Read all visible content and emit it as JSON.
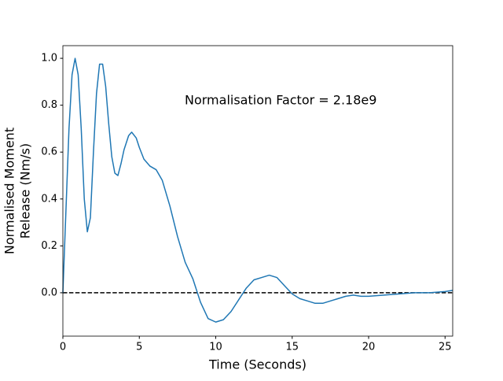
{
  "chart_data": {
    "type": "line",
    "xlabel": "Time (Seconds)",
    "ylabel": [
      "Normalised Moment",
      "Release (Nm/s)"
    ],
    "annotation": "Normalisation Factor = 2.18e9",
    "x": [
      0,
      0.2,
      0.4,
      0.6,
      0.8,
      1.0,
      1.2,
      1.4,
      1.6,
      1.8,
      2.0,
      2.2,
      2.4,
      2.6,
      2.8,
      3.0,
      3.2,
      3.4,
      3.6,
      3.8,
      4.0,
      4.3,
      4.5,
      4.8,
      5.0,
      5.3,
      5.7,
      6.1,
      6.5,
      7.0,
      7.5,
      8.0,
      8.5,
      9.0,
      9.5,
      10.0,
      10.5,
      11.0,
      11.5,
      12.0,
      12.5,
      13.0,
      13.5,
      14.0,
      14.5,
      15.0,
      15.5,
      16.0,
      16.5,
      17.0,
      17.5,
      18.0,
      18.5,
      19.0,
      19.5,
      20.0,
      21.0,
      22.0,
      23.0,
      24.0,
      25.0,
      25.5
    ],
    "series": [
      {
        "color": "#1f77b4",
        "values": [
          0.0,
          0.35,
          0.7,
          0.93,
          1.0,
          0.93,
          0.7,
          0.4,
          0.26,
          0.32,
          0.6,
          0.85,
          0.975,
          0.975,
          0.88,
          0.72,
          0.58,
          0.51,
          0.5,
          0.55,
          0.61,
          0.67,
          0.685,
          0.66,
          0.62,
          0.57,
          0.54,
          0.525,
          0.48,
          0.37,
          0.24,
          0.13,
          0.06,
          -0.04,
          -0.11,
          -0.125,
          -0.115,
          -0.08,
          -0.03,
          0.02,
          0.055,
          0.065,
          0.075,
          0.065,
          0.03,
          -0.005,
          -0.025,
          -0.035,
          -0.045,
          -0.045,
          -0.035,
          -0.025,
          -0.015,
          -0.01,
          -0.015,
          -0.015,
          -0.01,
          -0.005,
          0.0,
          0.0,
          0.005,
          0.01
        ]
      }
    ],
    "reference_line": {
      "value": 0,
      "color": "#000000",
      "style": "dashed"
    },
    "xlim": [
      0,
      25.5
    ],
    "xticks": [
      0,
      5,
      10,
      15,
      20,
      25
    ],
    "ylim": [
      -0.185,
      1.054
    ],
    "yticks": [
      {
        "value": 0,
        "label": "0.0"
      },
      0.2,
      0.4,
      0.6,
      0.8,
      {
        "value": 1,
        "label": "1.0"
      }
    ],
    "grid": false
  }
}
